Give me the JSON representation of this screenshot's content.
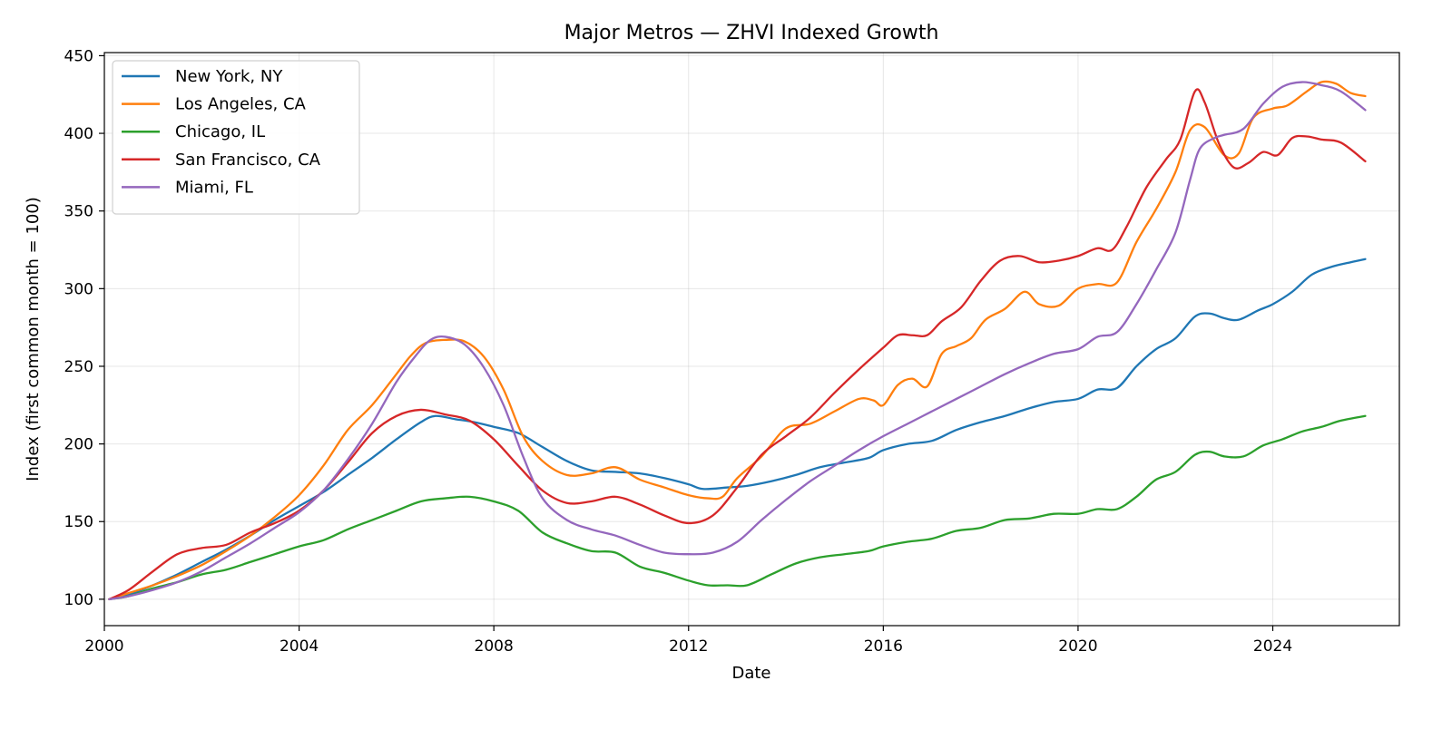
{
  "chart_data": {
    "type": "line",
    "title": "Major Metros — ZHVI Indexed Growth",
    "xlabel": "Date",
    "ylabel": "Index (first common month = 100)",
    "xlim": [
      2000.0,
      2026.6
    ],
    "ylim": [
      83,
      452
    ],
    "x_ticks": [
      2000,
      2004,
      2008,
      2012,
      2016,
      2020,
      2024
    ],
    "x_tick_labels": [
      "2000",
      "2004",
      "2008",
      "2012",
      "2016",
      "2020",
      "2024"
    ],
    "y_ticks": [
      100,
      150,
      200,
      250,
      300,
      350,
      400,
      450
    ],
    "y_tick_labels": [
      "100",
      "150",
      "200",
      "250",
      "300",
      "350",
      "400",
      "450"
    ],
    "grid": true,
    "legend_position": "top-left",
    "series": [
      {
        "name": "New York, NY",
        "color": "#1f77b4",
        "x": [
          2000.1,
          2000.5,
          2001.0,
          2001.5,
          2002.0,
          2002.5,
          2003.0,
          2003.5,
          2004.0,
          2004.5,
          2005.0,
          2005.5,
          2006.0,
          2006.5,
          2006.8,
          2007.2,
          2007.6,
          2008.0,
          2008.5,
          2009.0,
          2009.5,
          2010.0,
          2010.5,
          2011.0,
          2011.5,
          2012.0,
          2012.3,
          2012.8,
          2013.2,
          2013.7,
          2014.2,
          2014.7,
          2015.2,
          2015.7,
          2016.0,
          2016.5,
          2017.0,
          2017.5,
          2018.0,
          2018.5,
          2019.0,
          2019.5,
          2020.0,
          2020.4,
          2020.8,
          2021.2,
          2021.6,
          2022.0,
          2022.4,
          2022.7,
          2023.0,
          2023.3,
          2023.7,
          2024.0,
          2024.4,
          2024.8,
          2025.2,
          2025.6,
          2025.9
        ],
        "y": [
          100,
          103,
          109,
          116,
          124,
          132,
          141,
          151,
          160,
          169,
          180,
          191,
          203,
          214,
          218,
          216,
          214,
          211,
          207,
          198,
          189,
          183,
          182,
          181,
          178,
          174,
          171,
          172,
          173,
          176,
          180,
          185,
          188,
          191,
          196,
          200,
          202,
          209,
          214,
          218,
          223,
          227,
          229,
          235,
          236,
          250,
          261,
          268,
          282,
          284,
          281,
          280,
          286,
          290,
          298,
          309,
          314,
          317,
          319
        ]
      },
      {
        "name": "Los Angeles, CA",
        "color": "#ff7f0e",
        "x": [
          2000.1,
          2000.5,
          2001.0,
          2001.5,
          2002.0,
          2002.5,
          2003.0,
          2003.5,
          2004.0,
          2004.5,
          2005.0,
          2005.5,
          2006.0,
          2006.3,
          2006.6,
          2007.0,
          2007.4,
          2007.8,
          2008.2,
          2008.6,
          2009.0,
          2009.5,
          2010.0,
          2010.5,
          2011.0,
          2011.5,
          2012.0,
          2012.4,
          2012.7,
          2013.0,
          2013.5,
          2014.0,
          2014.5,
          2015.0,
          2015.5,
          2015.8,
          2016.0,
          2016.3,
          2016.6,
          2016.9,
          2017.2,
          2017.5,
          2017.8,
          2018.1,
          2018.5,
          2018.9,
          2019.2,
          2019.6,
          2020.0,
          2020.4,
          2020.8,
          2021.2,
          2021.6,
          2022.0,
          2022.3,
          2022.6,
          2023.0,
          2023.3,
          2023.6,
          2024.0,
          2024.3,
          2024.7,
          2025.0,
          2025.3,
          2025.6,
          2025.9
        ],
        "y": [
          100,
          104,
          109,
          115,
          122,
          131,
          141,
          153,
          167,
          186,
          209,
          225,
          245,
          257,
          265,
          267,
          266,
          256,
          235,
          205,
          189,
          180,
          181,
          185,
          177,
          172,
          167,
          165,
          166,
          178,
          192,
          210,
          213,
          221,
          229,
          228,
          225,
          238,
          242,
          237,
          258,
          263,
          268,
          280,
          287,
          298,
          290,
          289,
          300,
          303,
          304,
          330,
          351,
          375,
          402,
          404,
          386,
          387,
          410,
          416,
          418,
          427,
          433,
          432,
          426,
          424
        ]
      },
      {
        "name": "Chicago, IL",
        "color": "#2ca02c",
        "x": [
          2000.1,
          2000.5,
          2001.0,
          2001.5,
          2002.0,
          2002.5,
          2003.0,
          2003.5,
          2004.0,
          2004.5,
          2005.0,
          2005.5,
          2006.0,
          2006.5,
          2007.0,
          2007.5,
          2008.0,
          2008.5,
          2009.0,
          2009.5,
          2010.0,
          2010.5,
          2011.0,
          2011.5,
          2012.0,
          2012.4,
          2012.8,
          2013.2,
          2013.7,
          2014.2,
          2014.7,
          2015.2,
          2015.7,
          2016.0,
          2016.5,
          2017.0,
          2017.5,
          2018.0,
          2018.5,
          2019.0,
          2019.5,
          2020.0,
          2020.4,
          2020.8,
          2021.2,
          2021.6,
          2022.0,
          2022.4,
          2022.7,
          2023.0,
          2023.4,
          2023.8,
          2024.2,
          2024.6,
          2025.0,
          2025.4,
          2025.9
        ],
        "y": [
          100,
          102,
          107,
          111,
          116,
          119,
          124,
          129,
          134,
          138,
          145,
          151,
          157,
          163,
          165,
          166,
          163,
          157,
          143,
          136,
          131,
          130,
          121,
          117,
          112,
          109,
          109,
          109,
          116,
          123,
          127,
          129,
          131,
          134,
          137,
          139,
          144,
          146,
          151,
          152,
          155,
          155,
          158,
          158,
          166,
          177,
          182,
          193,
          195,
          192,
          192,
          199,
          203,
          208,
          211,
          215,
          218
        ]
      },
      {
        "name": "San Francisco, CA",
        "color": "#d62728",
        "x": [
          2000.1,
          2000.5,
          2001.0,
          2001.5,
          2002.0,
          2002.5,
          2003.0,
          2003.5,
          2004.0,
          2004.5,
          2005.0,
          2005.5,
          2006.0,
          2006.5,
          2007.0,
          2007.5,
          2008.0,
          2008.5,
          2009.0,
          2009.5,
          2010.0,
          2010.5,
          2011.0,
          2011.5,
          2012.0,
          2012.5,
          2013.0,
          2013.5,
          2014.0,
          2014.5,
          2015.0,
          2015.5,
          2016.0,
          2016.3,
          2016.6,
          2016.9,
          2017.2,
          2017.6,
          2018.0,
          2018.4,
          2018.8,
          2019.2,
          2019.6,
          2020.0,
          2020.4,
          2020.7,
          2021.0,
          2021.4,
          2021.8,
          2022.1,
          2022.4,
          2022.6,
          2022.9,
          2023.2,
          2023.5,
          2023.8,
          2024.1,
          2024.4,
          2024.7,
          2025.0,
          2025.4,
          2025.9
        ],
        "y": [
          100,
          106,
          118,
          129,
          133,
          135,
          143,
          149,
          157,
          170,
          188,
          207,
          218,
          222,
          219,
          215,
          203,
          186,
          170,
          162,
          163,
          166,
          161,
          154,
          149,
          154,
          172,
          193,
          205,
          217,
          233,
          248,
          262,
          270,
          270,
          270,
          279,
          288,
          305,
          318,
          321,
          317,
          318,
          321,
          326,
          325,
          340,
          365,
          383,
          396,
          427,
          420,
          393,
          378,
          381,
          388,
          386,
          397,
          398,
          396,
          394,
          382
        ]
      },
      {
        "name": "Miami, FL",
        "color": "#9467bd",
        "x": [
          2000.1,
          2000.5,
          2001.0,
          2001.5,
          2002.0,
          2002.5,
          2003.0,
          2003.5,
          2004.0,
          2004.5,
          2005.0,
          2005.5,
          2006.0,
          2006.4,
          2006.7,
          2007.0,
          2007.4,
          2007.8,
          2008.2,
          2008.6,
          2009.0,
          2009.5,
          2010.0,
          2010.5,
          2011.0,
          2011.5,
          2012.0,
          2012.5,
          2013.0,
          2013.5,
          2014.0,
          2014.5,
          2015.0,
          2015.5,
          2016.0,
          2016.5,
          2017.0,
          2017.5,
          2018.0,
          2018.5,
          2019.0,
          2019.5,
          2020.0,
          2020.4,
          2020.8,
          2021.2,
          2021.6,
          2022.0,
          2022.3,
          2022.5,
          2022.8,
          2023.0,
          2023.4,
          2023.8,
          2024.2,
          2024.6,
          2025.0,
          2025.4,
          2025.9
        ],
        "y": [
          100,
          102,
          106,
          111,
          118,
          127,
          136,
          146,
          156,
          170,
          190,
          213,
          240,
          257,
          267,
          269,
          264,
          249,
          225,
          192,
          165,
          151,
          145,
          141,
          135,
          130,
          129,
          130,
          137,
          151,
          164,
          176,
          186,
          196,
          205,
          213,
          221,
          229,
          237,
          245,
          252,
          258,
          261,
          269,
          272,
          290,
          312,
          336,
          370,
          390,
          397,
          399,
          403,
          419,
          430,
          433,
          431,
          427,
          415
        ]
      }
    ]
  }
}
